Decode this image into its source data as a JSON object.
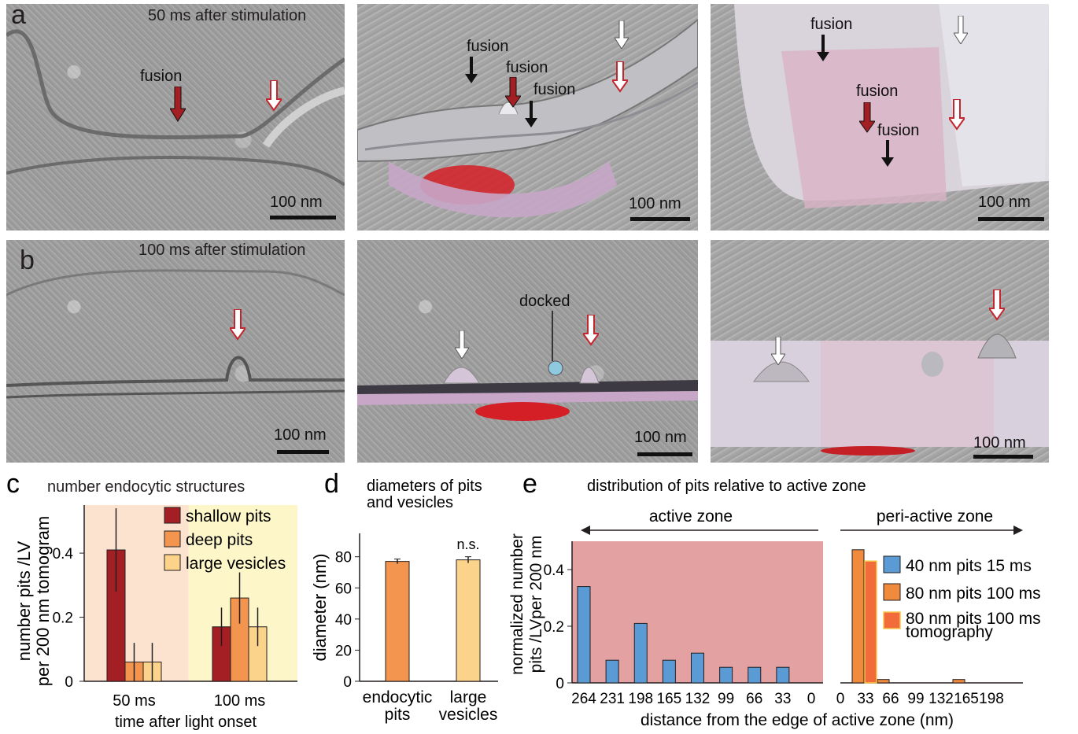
{
  "panel_a": {
    "letter": "a",
    "time_label": "50 ms after stimulation",
    "img1": {
      "label": "fusion",
      "scale": "100 nm"
    },
    "img2": {
      "labels": [
        "fusion",
        "fusion",
        "fusion"
      ],
      "scale": "100 nm"
    },
    "img3": {
      "labels": [
        "fusion",
        "fusion",
        "fusion"
      ],
      "scale": "100 nm"
    }
  },
  "panel_b": {
    "letter": "b",
    "time_label": "100 ms after stimulation",
    "img1": {
      "scale": "100 nm"
    },
    "img2": {
      "label": "docked",
      "scale": "100 nm"
    },
    "img3": {
      "scale": "100 nm"
    }
  },
  "colors": {
    "shallow": "#a31f24",
    "deep": "#f3954f",
    "large": "#fbd38a",
    "blue": "#5b9bd5",
    "orange": "#f08a3c",
    "tomo": "#f26b3a",
    "active_zone_bg": "#e4a1a1",
    "bg_50": "#fbe3cf",
    "bg_100": "#fdf6c9"
  },
  "chart_data": [
    {
      "type": "bar",
      "panel": "c",
      "title": "number endocytic structures",
      "ylabel_line1": "number pits /LV",
      "ylabel_line2": "per 200 nm tomogram",
      "xlabel": "time after light onset",
      "categories": [
        "50 ms",
        "100 ms"
      ],
      "ylim": [
        0,
        0.55
      ],
      "yticks": [
        "0",
        "0.2",
        "0.4"
      ],
      "series": [
        {
          "name": "shallow pits",
          "values": [
            0.41,
            0.17
          ],
          "errors": [
            0.13,
            0.06
          ]
        },
        {
          "name": "deep pits",
          "values": [
            0.06,
            0.26
          ],
          "errors": [
            0.06,
            0.08
          ]
        },
        {
          "name": "large vesicles",
          "values": [
            0.06,
            0.17
          ],
          "errors": [
            0.06,
            0.06
          ]
        }
      ]
    },
    {
      "type": "bar",
      "panel": "d",
      "title_line1": "diameters of pits",
      "title_line2": "and vesicles",
      "ylabel": "diameter (nm)",
      "categories": [
        [
          "endocytic",
          "pits"
        ],
        [
          "large",
          "vesicles"
        ]
      ],
      "values": [
        77,
        78
      ],
      "errors": [
        1.5,
        2
      ],
      "ylim": [
        0,
        95
      ],
      "yticks": [
        "0",
        "20",
        "40",
        "60",
        "80"
      ],
      "annotation": "n.s."
    },
    {
      "type": "bar",
      "panel": "e",
      "title": "distribution of pits relative to active zone",
      "ylabel_line1": "normalized number",
      "ylabel_line2": "pits /LVper 200 nm",
      "xlabel": "distance from the edge of active zone (nm)",
      "region_left": "active zone",
      "region_right": "peri-active zone",
      "ylim": [
        0,
        0.5
      ],
      "yticks": [
        "0",
        "0.2",
        "0.4"
      ],
      "active_ticks": [
        "264",
        "231",
        "198",
        "165",
        "132",
        "99",
        "66",
        "33",
        "0"
      ],
      "peri_ticks": [
        "0",
        "33",
        "66",
        "99",
        "132",
        "165",
        "198"
      ],
      "series": [
        {
          "name": "40 nm pits 15 ms",
          "x": [
            264,
            231,
            198,
            165,
            132,
            99,
            66,
            33
          ],
          "values": [
            0.34,
            0.08,
            0.21,
            0.08,
            0.105,
            0.055,
            0.055,
            0.055
          ]
        },
        {
          "name": "80 nm pits 100 ms",
          "x": [
            33,
            66,
            165
          ],
          "values": [
            0.47,
            0.012,
            0.012
          ]
        },
        {
          "name_line1": "80 nm pits 100 ms",
          "name_line2": "tomography",
          "x": [
            33
          ],
          "values": [
            0.43
          ]
        }
      ]
    }
  ]
}
